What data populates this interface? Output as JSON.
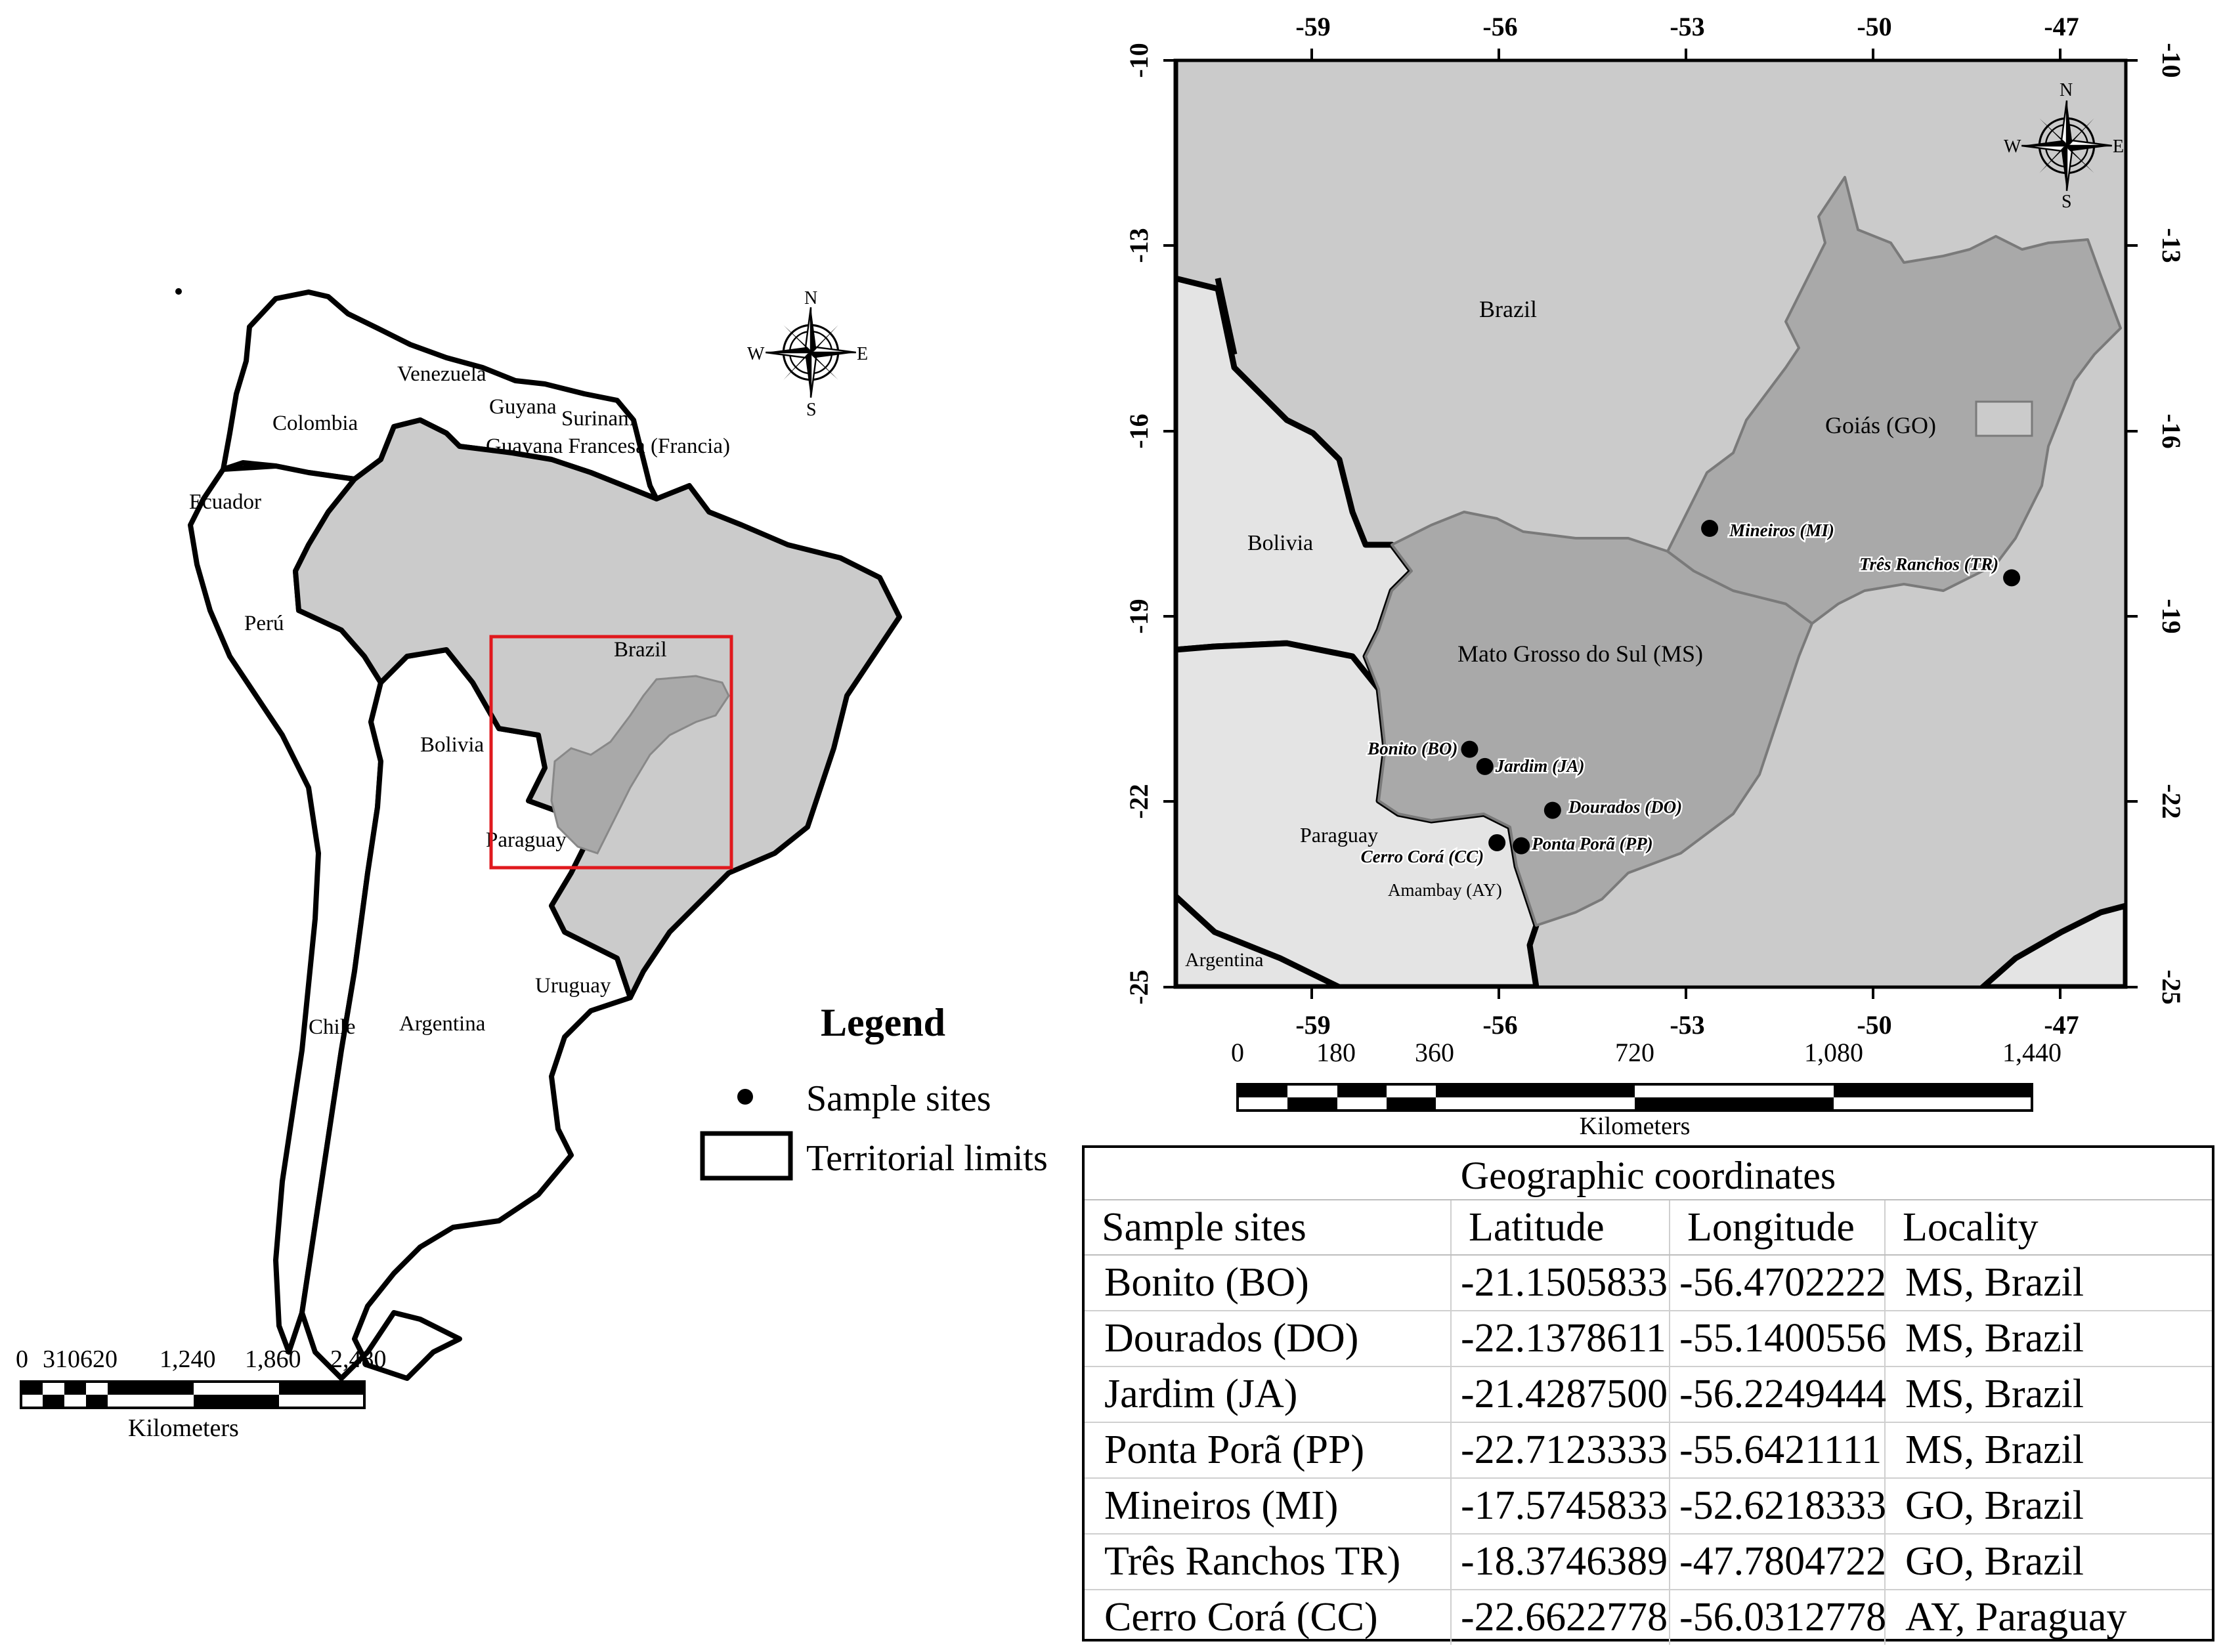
{
  "colors": {
    "brazil_fill": "#cbcbcb",
    "states_fill": "#a9a9a9",
    "neighbors_fill": "#e4e4e4",
    "frame_red": "#e0191e",
    "outline": "#000000"
  },
  "overview_map": {
    "countries": {
      "venezuela": "Venezuela",
      "colombia": "Colombia",
      "guyana": "Guyana",
      "surinam": "Surinam",
      "french_guiana": "Guayana Francesa (Francia)",
      "ecuador": "Ecuador",
      "peru": "Perú",
      "brazil": "Brazil",
      "bolivia": "Bolivia",
      "paraguay": "Paraguay",
      "uruguay": "Uruguay",
      "chile": "Chile",
      "argentina": "Argentina"
    },
    "compass": {
      "n": "N",
      "s": "S",
      "e": "E",
      "w": "W"
    },
    "scale": {
      "ticks": [
        "0",
        "310620",
        "1,240",
        "1,860",
        "2,480"
      ],
      "unit": "Kilometers"
    }
  },
  "legend": {
    "title": "Legend",
    "items": [
      {
        "icon": "sample-site-dot",
        "label": "Sample sites"
      },
      {
        "icon": "territorial-limit-box",
        "label": "Territorial limits"
      }
    ]
  },
  "detail_map": {
    "lon_ticks": [
      "-59",
      "-56",
      "-53",
      "-50",
      "-47"
    ],
    "lat_ticks": [
      "-10",
      "-13",
      "-16",
      "-19",
      "-22",
      "-25"
    ],
    "region_labels": {
      "brazil": "Brazil",
      "bolivia": "Bolivia",
      "goias": "Goiás (GO)",
      "mato_grosso_do_sul": "Mato Grosso do Sul (MS)",
      "paraguay": "Paraguay",
      "amambay": "Amambay (AY)",
      "argentina": "Argentina"
    },
    "sites": [
      {
        "label": "Mineiros (MI)",
        "lat": -17.5745833,
        "lon": -52.6218333
      },
      {
        "label": "Três Ranchos (TR)",
        "lat": -18.3746389,
        "lon": -47.7804722
      },
      {
        "label": "Bonito (BO)",
        "lat": -21.1505833,
        "lon": -56.4702222
      },
      {
        "label": "Jardim (JA)",
        "lat": -21.42875,
        "lon": -56.2249444
      },
      {
        "label": "Dourados (DO)",
        "lat": -22.1378611,
        "lon": -55.1400556
      },
      {
        "label": "Cerro Corá (CC)",
        "lat": -22.6622778,
        "lon": -56.0312778
      },
      {
        "label": "Ponta Porã (PP)",
        "lat": -22.7123333,
        "lon": -55.6421111
      }
    ],
    "compass": {
      "n": "N",
      "s": "S",
      "e": "E",
      "w": "W"
    },
    "scale": {
      "ticks": [
        "0",
        "180",
        "360",
        "720",
        "1,080",
        "1,440"
      ],
      "unit": "Kilometers"
    }
  },
  "coordinates_table": {
    "title": "Geographic coordinates",
    "headers": [
      "Sample sites",
      "Latitude",
      "Longitude",
      "Locality"
    ],
    "rows": [
      [
        "Bonito (BO)",
        "-21.1505833",
        "-56.4702222",
        "MS, Brazil"
      ],
      [
        "Dourados (DO)",
        "-22.1378611",
        "-55.1400556",
        "MS, Brazil"
      ],
      [
        "Jardim (JA)",
        "-21.4287500",
        "-56.2249444",
        "MS, Brazil"
      ],
      [
        "Ponta Porã (PP)",
        "-22.7123333",
        "-55.6421111",
        "MS, Brazil"
      ],
      [
        "Mineiros (MI)",
        "-17.5745833",
        "-52.6218333",
        "GO, Brazil"
      ],
      [
        "Três Ranchos TR)",
        "-18.3746389",
        "-47.7804722",
        "GO, Brazil"
      ],
      [
        "Cerro Corá (CC)",
        "-22.6622778",
        "-56.0312778",
        "AY, Paraguay"
      ]
    ]
  }
}
